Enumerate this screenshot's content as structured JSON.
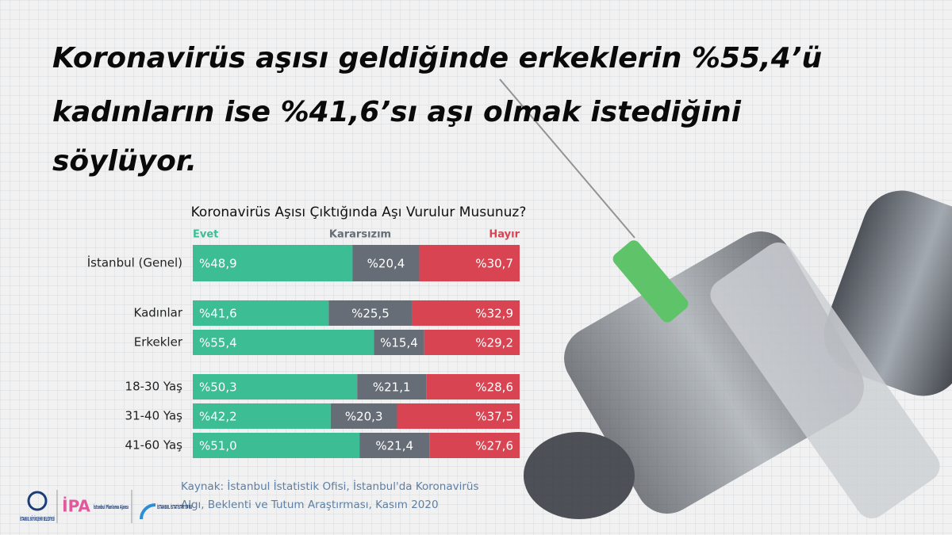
{
  "chart_data": {
    "type": "stacked-bar-horizontal",
    "title": [
      "Koronavirüs aşısı geldiğinde erkeklerin %55,4’ü",
      "kadınların ise %41,6’sı aşı olmak istediğini",
      "söylüyor."
    ],
    "subtitle": "Koronavirüs Aşısı Çıktığında Aşı Vurulur Musunuz?",
    "categories": [
      "İstanbul (Genel)",
      "Kadınlar",
      "Erkekler",
      "18-30 Yaş",
      "31-40 Yaş",
      "41-60 Yaş"
    ],
    "xlim": [
      0,
      100
    ],
    "series": [
      {
        "name": "Evet",
        "color": "#3dbd93",
        "values": [
          48.9,
          41.6,
          55.4,
          50.3,
          42.2,
          51.0
        ],
        "value_labels": [
          "%48,9",
          "%41,6",
          "%55,4",
          "%50,3",
          "%42,2",
          "%51,0"
        ]
      },
      {
        "name": "Kararsızım",
        "color": "#676d76",
        "values": [
          20.4,
          25.5,
          15.4,
          21.1,
          20.3,
          21.4
        ],
        "value_labels": [
          "%20,4",
          "%25,5",
          "%15,4",
          "%21,1",
          "%20,3",
          "%21,4"
        ]
      },
      {
        "name": "Hayır",
        "color": "#d94452",
        "values": [
          30.7,
          32.9,
          29.2,
          28.6,
          37.5,
          27.6
        ],
        "value_labels": [
          "%30,7",
          "%32,9",
          "%29,2",
          "%28,6",
          "%37,5",
          "%27,6"
        ]
      }
    ],
    "source": [
      "Kaynak: İstanbul İstatistik Ofisi, İstanbul'da Koronavirüs",
      "Algı, Beklenti ve Tutum Araştırması, Kasım 2020"
    ]
  },
  "logos": [
    "İSTANBUL BÜYÜKŞEHİR BELEDİYESİ",
    "İPA",
    "İstanbul Planlama Ajansı",
    "İSTANBUL İSTATİSTİK OFİSİ"
  ]
}
